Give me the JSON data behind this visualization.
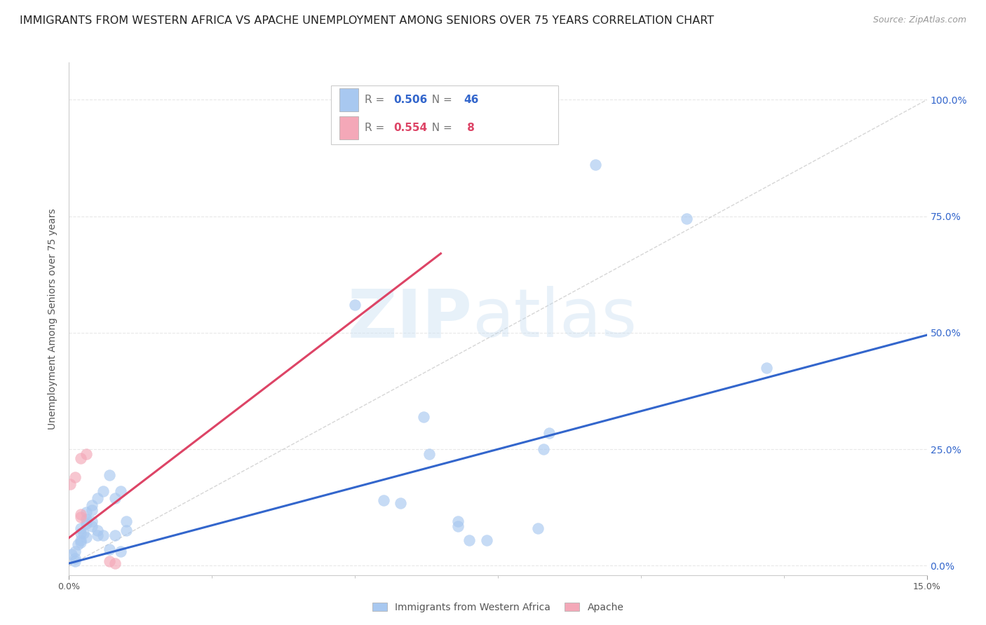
{
  "title": "IMMIGRANTS FROM WESTERN AFRICA VS APACHE UNEMPLOYMENT AMONG SENIORS OVER 75 YEARS CORRELATION CHART",
  "source": "Source: ZipAtlas.com",
  "ylabel": "Unemployment Among Seniors over 75 years",
  "xlim": [
    0.0,
    0.15
  ],
  "ylim": [
    -0.02,
    1.08
  ],
  "ytick_labels": [
    "0.0%",
    "25.0%",
    "50.0%",
    "75.0%",
    "100.0%"
  ],
  "ytick_values": [
    0.0,
    0.25,
    0.5,
    0.75,
    1.0
  ],
  "legend1_label": "Immigrants from Western Africa",
  "legend2_label": "Apache",
  "R_blue": "0.506",
  "N_blue": "46",
  "R_pink": "0.554",
  "N_pink": " 8",
  "blue_color": "#A8C8F0",
  "pink_color": "#F4A8B8",
  "line_blue": "#3366CC",
  "line_pink": "#DD4466",
  "line_diag_color": "#CCCCCC",
  "blue_points": [
    [
      0.0005,
      0.025
    ],
    [
      0.001,
      0.03
    ],
    [
      0.001,
      0.015
    ],
    [
      0.001,
      0.01
    ],
    [
      0.0015,
      0.045
    ],
    [
      0.002,
      0.055
    ],
    [
      0.002,
      0.05
    ],
    [
      0.002,
      0.07
    ],
    [
      0.002,
      0.08
    ],
    [
      0.0025,
      0.07
    ],
    [
      0.003,
      0.06
    ],
    [
      0.003,
      0.1
    ],
    [
      0.003,
      0.115
    ],
    [
      0.003,
      0.09
    ],
    [
      0.004,
      0.085
    ],
    [
      0.004,
      0.095
    ],
    [
      0.004,
      0.13
    ],
    [
      0.004,
      0.12
    ],
    [
      0.005,
      0.145
    ],
    [
      0.005,
      0.065
    ],
    [
      0.005,
      0.075
    ],
    [
      0.006,
      0.16
    ],
    [
      0.006,
      0.065
    ],
    [
      0.007,
      0.195
    ],
    [
      0.007,
      0.035
    ],
    [
      0.008,
      0.065
    ],
    [
      0.008,
      0.145
    ],
    [
      0.009,
      0.16
    ],
    [
      0.009,
      0.03
    ],
    [
      0.01,
      0.095
    ],
    [
      0.01,
      0.075
    ],
    [
      0.05,
      0.56
    ],
    [
      0.055,
      0.14
    ],
    [
      0.058,
      0.135
    ],
    [
      0.062,
      0.32
    ],
    [
      0.063,
      0.24
    ],
    [
      0.068,
      0.095
    ],
    [
      0.068,
      0.085
    ],
    [
      0.07,
      0.055
    ],
    [
      0.073,
      0.055
    ],
    [
      0.082,
      0.08
    ],
    [
      0.083,
      0.25
    ],
    [
      0.084,
      0.285
    ],
    [
      0.092,
      0.86
    ],
    [
      0.108,
      0.745
    ],
    [
      0.122,
      0.425
    ]
  ],
  "pink_points": [
    [
      0.0002,
      0.175
    ],
    [
      0.001,
      0.19
    ],
    [
      0.002,
      0.23
    ],
    [
      0.002,
      0.11
    ],
    [
      0.002,
      0.105
    ],
    [
      0.003,
      0.24
    ],
    [
      0.007,
      0.01
    ],
    [
      0.008,
      0.005
    ]
  ],
  "blue_line_x": [
    0.0,
    0.15
  ],
  "blue_line_y": [
    0.005,
    0.495
  ],
  "pink_line_x": [
    0.0,
    0.065
  ],
  "pink_line_y": [
    0.06,
    0.67
  ],
  "diag_line_x": [
    0.0,
    0.15
  ],
  "diag_line_y": [
    0.0,
    1.0
  ],
  "grid_color": "#E8E8E8",
  "bg_color": "#FFFFFF",
  "title_fontsize": 11.5,
  "axis_label_fontsize": 10,
  "tick_fontsize": 9,
  "right_tick_color": "#3366CC"
}
